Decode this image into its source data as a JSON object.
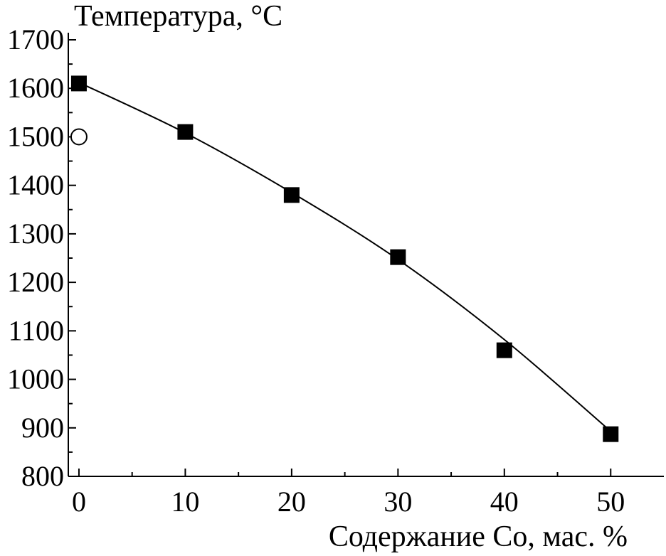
{
  "chart_data": {
    "type": "scatter",
    "ylabel": "Температура, °С",
    "xlabel": "Содержание Со, мас. %",
    "xlim": [
      -1,
      55
    ],
    "ylim": [
      800,
      1700
    ],
    "x_ticks": [
      0,
      10,
      20,
      30,
      40,
      50
    ],
    "x_tick_labels": [
      "0",
      "10",
      "20",
      "30",
      "40",
      "50"
    ],
    "y_ticks": [
      800,
      900,
      1000,
      1100,
      1200,
      1300,
      1400,
      1500,
      1600,
      1700
    ],
    "y_tick_labels": [
      "800",
      "900",
      "1000",
      "1100",
      "1200",
      "1300",
      "1400",
      "1500",
      "1600",
      "1700"
    ],
    "grid": false,
    "series": [
      {
        "marker": "filled-square",
        "color": "#000000",
        "points": [
          {
            "x": 0,
            "y": 1610
          },
          {
            "x": 10,
            "y": 1510
          },
          {
            "x": 20,
            "y": 1380
          },
          {
            "x": 30,
            "y": 1252
          },
          {
            "x": 40,
            "y": 1060
          },
          {
            "x": 50,
            "y": 887
          }
        ]
      },
      {
        "marker": "open-circle",
        "color": "#000000",
        "points": [
          {
            "x": 0,
            "y": 1500
          }
        ]
      }
    ],
    "fit_curve": {
      "color": "#000000",
      "points": [
        {
          "x": 0,
          "y": 1612
        },
        {
          "x": 10,
          "y": 1508
        },
        {
          "x": 20,
          "y": 1385
        },
        {
          "x": 30,
          "y": 1247
        },
        {
          "x": 40,
          "y": 1082
        },
        {
          "x": 50,
          "y": 893
        }
      ]
    }
  }
}
